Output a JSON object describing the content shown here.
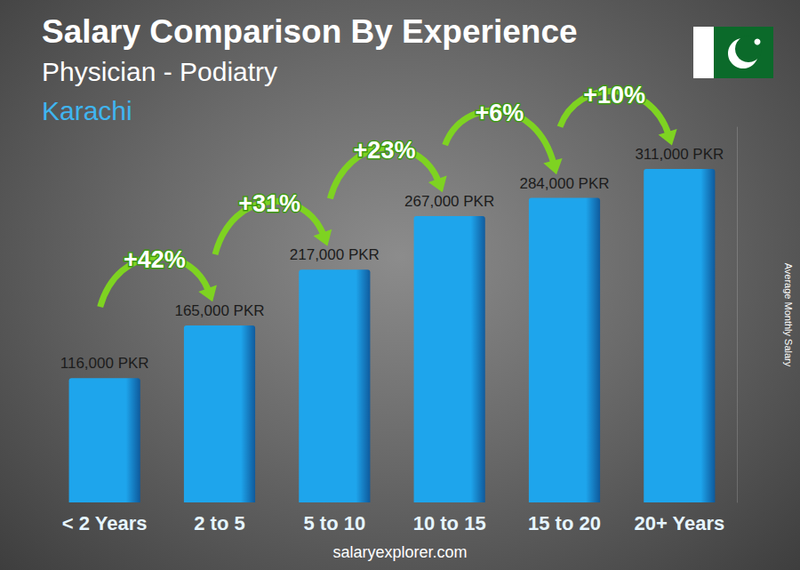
{
  "chart_data": {
    "type": "bar",
    "title": "Salary Comparison By Experience",
    "subtitle": "Physician - Podiatry",
    "location": "Karachi",
    "y_label": "Average Monthly Salary",
    "source": "salaryexplorer.com",
    "categories": [
      "< 2 Years",
      "2 to 5",
      "5 to 10",
      "10 to 15",
      "15 to 20",
      "20+ Years"
    ],
    "values": [
      116000,
      165000,
      217000,
      267000,
      284000,
      311000
    ],
    "value_labels": [
      "116,000 PKR",
      "165,000 PKR",
      "217,000 PKR",
      "267,000 PKR",
      "284,000 PKR",
      "311,000 PKR"
    ],
    "color": "#1ea5ec",
    "ylim": [
      0,
      350000
    ],
    "grid": false,
    "data_labels": true,
    "tick_labels": "x",
    "annotations": [
      {
        "text": "+42%",
        "from": "< 2 Years",
        "to": "2 to 5"
      },
      {
        "text": "+31%",
        "from": "2 to 5",
        "to": "5 to 10"
      },
      {
        "text": "+23%",
        "from": "5 to 10",
        "to": "10 to 15"
      },
      {
        "text": "+6%",
        "from": "10 to 15",
        "to": "15 to 20"
      },
      {
        "text": "+10%",
        "from": "15 to 20",
        "to": "20+ Years"
      }
    ]
  }
}
